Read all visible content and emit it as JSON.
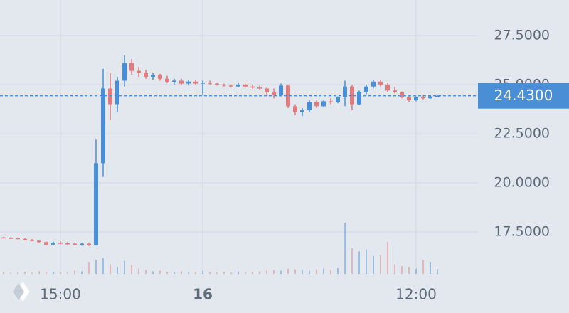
{
  "chart_data": {
    "type": "candlestick",
    "categories": [
      null,
      null,
      null,
      null,
      null,
      null,
      null,
      null,
      "15:00",
      null,
      null,
      null,
      null,
      null,
      null,
      null,
      null,
      null,
      null,
      null,
      null,
      null,
      null,
      null,
      null,
      null,
      null,
      null,
      "16",
      null,
      null,
      null,
      null,
      null,
      null,
      null,
      null,
      null,
      null,
      null,
      null,
      null,
      null,
      null,
      null,
      null,
      null,
      null,
      null,
      null,
      null,
      null,
      null,
      null,
      null,
      null,
      null,
      null,
      "12:00",
      null,
      null,
      null
    ],
    "open": [
      17.22,
      17.2,
      17.18,
      17.14,
      17.1,
      17.05,
      16.98,
      16.85,
      16.95,
      16.92,
      16.9,
      16.86,
      16.9,
      16.82,
      21.0,
      24.8,
      24.0,
      25.2,
      26.1,
      25.7,
      25.6,
      25.4,
      25.5,
      25.3,
      25.15,
      25.2,
      25.05,
      25.15,
      25.05,
      25.1,
      25.05,
      25.0,
      24.95,
      24.9,
      25.0,
      24.9,
      24.85,
      24.8,
      24.6,
      24.45,
      24.95,
      23.9,
      23.6,
      23.7,
      24.1,
      23.9,
      24.15,
      24.1,
      24.35,
      24.9,
      24.0,
      24.6,
      24.9,
      25.15,
      25.0,
      24.7,
      24.6,
      24.35,
      24.2,
      24.35,
      24.3,
      24.4
    ],
    "high": [
      17.25,
      17.24,
      17.22,
      17.18,
      17.14,
      17.08,
      17.02,
      17.0,
      17.02,
      16.98,
      16.96,
      16.94,
      16.95,
      22.2,
      25.8,
      25.6,
      25.4,
      26.5,
      26.3,
      25.9,
      25.75,
      25.6,
      25.55,
      25.45,
      25.3,
      25.3,
      25.25,
      25.25,
      25.2,
      25.2,
      25.1,
      25.05,
      25.0,
      25.1,
      25.05,
      25.0,
      24.95,
      24.85,
      24.8,
      25.05,
      25.0,
      24.0,
      23.8,
      24.2,
      24.2,
      24.2,
      24.3,
      24.4,
      25.2,
      25.0,
      24.7,
      25.0,
      25.25,
      25.25,
      25.1,
      24.85,
      24.65,
      24.45,
      24.4,
      24.45,
      24.45,
      24.48
    ],
    "low": [
      17.18,
      17.15,
      17.12,
      17.08,
      17.02,
      16.95,
      16.8,
      16.82,
      16.88,
      16.84,
      16.82,
      16.8,
      16.78,
      16.8,
      20.3,
      23.2,
      23.6,
      24.9,
      25.5,
      25.4,
      25.3,
      25.25,
      25.2,
      25.1,
      25.0,
      25.0,
      24.95,
      25.0,
      24.5,
      25.0,
      24.95,
      24.9,
      24.85,
      24.85,
      24.85,
      24.8,
      24.75,
      24.5,
      24.3,
      24.4,
      23.8,
      23.45,
      23.4,
      23.6,
      23.8,
      23.85,
      24.0,
      24.05,
      23.9,
      23.7,
      23.95,
      24.5,
      24.8,
      24.9,
      24.6,
      24.55,
      24.3,
      24.1,
      24.15,
      24.25,
      24.28,
      24.35
    ],
    "close": [
      17.2,
      17.18,
      17.14,
      17.1,
      17.05,
      16.98,
      16.85,
      16.95,
      16.92,
      16.9,
      16.86,
      16.9,
      16.82,
      21.0,
      24.8,
      24.0,
      25.2,
      26.1,
      25.7,
      25.6,
      25.4,
      25.5,
      25.3,
      25.15,
      25.2,
      25.05,
      25.15,
      25.05,
      25.1,
      25.05,
      25.0,
      24.95,
      24.9,
      25.0,
      24.9,
      24.85,
      24.8,
      24.6,
      24.45,
      24.95,
      23.9,
      23.6,
      23.7,
      24.1,
      23.9,
      24.15,
      24.1,
      24.35,
      24.9,
      24.0,
      24.6,
      24.9,
      25.15,
      25.0,
      24.7,
      24.6,
      24.35,
      24.2,
      24.35,
      24.3,
      24.4,
      24.43
    ],
    "volume": [
      3,
      2,
      2,
      3,
      2,
      4,
      3,
      3,
      2,
      3,
      5,
      4,
      18,
      22,
      25,
      15,
      10,
      20,
      14,
      8,
      6,
      4,
      5,
      3,
      3,
      4,
      3,
      3,
      5,
      3,
      2,
      3,
      2,
      4,
      3,
      3,
      4,
      5,
      6,
      5,
      8,
      7,
      6,
      5,
      7,
      8,
      6,
      9,
      80,
      40,
      35,
      38,
      28,
      30,
      50,
      15,
      12,
      10,
      8,
      22,
      18,
      8
    ],
    "vlim": [
      0,
      100
    ],
    "up_color": "#4a8fd6",
    "down_color": "#e07b80",
    "ylim": [
      15.36,
      29.31
    ],
    "yticks": [
      {
        "value": 17.5,
        "label": "17.5000"
      },
      {
        "value": 20,
        "label": "20.0000"
      },
      {
        "value": 22.5,
        "label": "22.5000"
      },
      {
        "value": 25,
        "label": "25.0000"
      },
      {
        "value": 27.5,
        "label": "27.5000"
      }
    ],
    "last_price": {
      "value": 24.43,
      "label": "24.4300"
    },
    "grid": true
  }
}
